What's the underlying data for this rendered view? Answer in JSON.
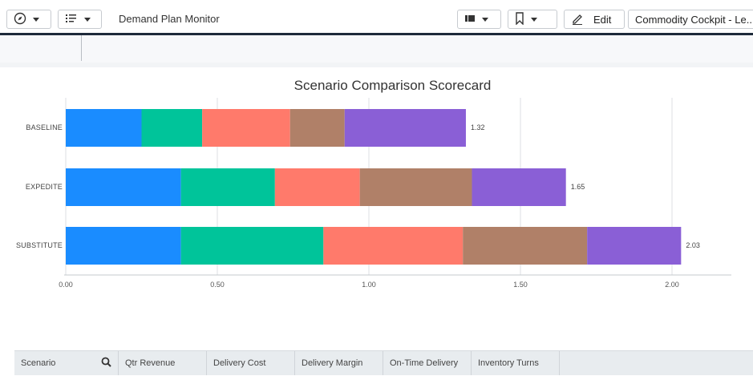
{
  "topbar": {
    "title": "Demand Plan Monitor",
    "edit_label": "Edit",
    "story_name": "Commodity Cockpit - Le..."
  },
  "chart_data": {
    "type": "bar",
    "orientation": "horizontal",
    "stacked": true,
    "title": "Scenario Comparison Scorecard",
    "categories": [
      "BASELINE",
      "EXPEDITE",
      "SUBSTITUTE"
    ],
    "series": [
      {
        "values": [
          0.25,
          0.38,
          0.38
        ],
        "color": "#1a8cff"
      },
      {
        "values": [
          0.2,
          0.31,
          0.47
        ],
        "color": "#00c49a"
      },
      {
        "values": [
          0.29,
          0.28,
          0.46
        ],
        "color": "#ff7a6b"
      },
      {
        "values": [
          0.18,
          0.37,
          0.41
        ],
        "color": "#b08068"
      },
      {
        "values": [
          0.4,
          0.31,
          0.31
        ],
        "color": "#8a5fd6"
      }
    ],
    "totals": [
      1.32,
      1.65,
      2.03
    ],
    "total_labels": [
      "1.32",
      "1.65",
      "2.03"
    ],
    "xlim": [
      0,
      2.2
    ],
    "xticks": [
      "0.00",
      "0.50",
      "1.00",
      "1.50",
      "2.00"
    ],
    "grid": true
  },
  "table": {
    "columns": [
      "Scenario",
      "Qtr Revenue",
      "Delivery Cost",
      "Delivery Margin",
      "On-Time Delivery",
      "Inventory Turns"
    ]
  }
}
